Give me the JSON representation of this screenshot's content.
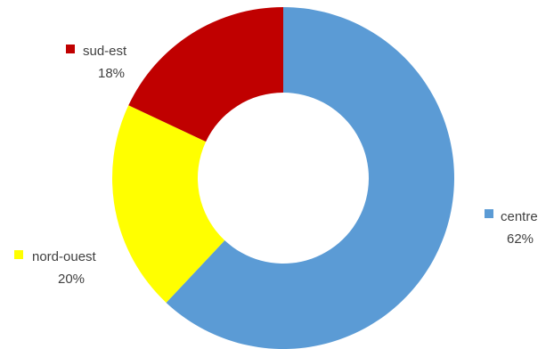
{
  "chart_data": {
    "type": "pie",
    "variant": "donut",
    "categories": [
      "centre",
      "nord-ouest",
      "sud-est"
    ],
    "values": [
      62,
      20,
      18
    ],
    "value_labels": [
      "62%",
      "20%",
      "18%"
    ],
    "colors": [
      "#5B9BD5",
      "#FFFF00",
      "#C00000"
    ],
    "start_direction": "top",
    "clockwise": true,
    "title": "",
    "legend": "inline labels beside each slice",
    "grid": false
  }
}
